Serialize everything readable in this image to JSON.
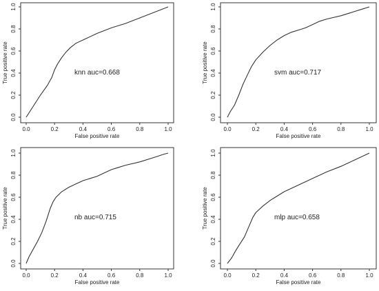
{
  "chart_data": [
    {
      "type": "line",
      "xlabel": "False positive rate",
      "ylabel": "True positive rate",
      "annotation": "knn auc=0.668",
      "xlim": [
        0,
        1
      ],
      "ylim": [
        0,
        1
      ],
      "xticks": [
        "0.0",
        "0.2",
        "0.4",
        "0.6",
        "0.8",
        "1.0"
      ],
      "yticks": [
        "0.0",
        "0.2",
        "0.4",
        "0.6",
        "0.8",
        "1.0"
      ],
      "grid": false,
      "x": [
        0,
        0.05,
        0.1,
        0.15,
        0.18,
        0.2,
        0.22,
        0.25,
        0.28,
        0.31,
        0.35,
        0.4,
        0.5,
        0.6,
        0.7,
        0.8,
        0.9,
        1.0
      ],
      "y": [
        0,
        0.1,
        0.2,
        0.29,
        0.36,
        0.43,
        0.48,
        0.54,
        0.59,
        0.63,
        0.67,
        0.7,
        0.76,
        0.81,
        0.85,
        0.9,
        0.95,
        1.0
      ]
    },
    {
      "type": "line",
      "xlabel": "False positive rate",
      "ylabel": "True positive rate",
      "annotation": "svm auc=0.717",
      "xlim": [
        0,
        1
      ],
      "ylim": [
        0,
        1
      ],
      "xticks": [
        "0.0",
        "0.2",
        "0.4",
        "0.6",
        "0.8",
        "1.0"
      ],
      "yticks": [
        "0.0",
        "0.2",
        "0.4",
        "0.6",
        "0.8",
        "1.0"
      ],
      "grid": false,
      "x": [
        0,
        0.02,
        0.05,
        0.08,
        0.11,
        0.14,
        0.17,
        0.2,
        0.25,
        0.3,
        0.35,
        0.4,
        0.45,
        0.5,
        0.55,
        0.6,
        0.65,
        0.7,
        0.8,
        0.9,
        0.95,
        1.0
      ],
      "y": [
        0,
        0.05,
        0.11,
        0.2,
        0.3,
        0.38,
        0.46,
        0.52,
        0.59,
        0.65,
        0.7,
        0.74,
        0.77,
        0.79,
        0.81,
        0.84,
        0.87,
        0.89,
        0.92,
        0.96,
        0.98,
        1.0
      ]
    },
    {
      "type": "line",
      "xlabel": "False positive rate",
      "ylabel": "True positive rate",
      "annotation": "nb auc=0.715",
      "xlim": [
        0,
        1
      ],
      "ylim": [
        0,
        1
      ],
      "xticks": [
        "0.0",
        "0.2",
        "0.4",
        "0.6",
        "0.8",
        "1.0"
      ],
      "yticks": [
        "0.0",
        "0.2",
        "0.4",
        "0.6",
        "0.8",
        "1.0"
      ],
      "grid": false,
      "x": [
        0,
        0.02,
        0.05,
        0.08,
        0.11,
        0.14,
        0.17,
        0.19,
        0.21,
        0.25,
        0.3,
        0.35,
        0.4,
        0.45,
        0.5,
        0.55,
        0.6,
        0.65,
        0.7,
        0.8,
        0.9,
        0.97,
        1.0
      ],
      "y": [
        0,
        0.06,
        0.13,
        0.2,
        0.28,
        0.38,
        0.5,
        0.56,
        0.6,
        0.65,
        0.69,
        0.72,
        0.75,
        0.77,
        0.79,
        0.82,
        0.85,
        0.87,
        0.89,
        0.92,
        0.96,
        0.99,
        1.0
      ]
    },
    {
      "type": "line",
      "xlabel": "False positive rate",
      "ylabel": "True positive rate",
      "annotation": "mlp auc=0.658",
      "xlim": [
        0,
        1
      ],
      "ylim": [
        0,
        1
      ],
      "xticks": [
        "0.0",
        "0.2",
        "0.4",
        "0.6",
        "0.8",
        "1.0"
      ],
      "yticks": [
        "0.0",
        "0.2",
        "0.4",
        "0.6",
        "0.8",
        "1.0"
      ],
      "grid": false,
      "x": [
        0,
        0.03,
        0.06,
        0.09,
        0.12,
        0.15,
        0.18,
        0.2,
        0.25,
        0.3,
        0.35,
        0.4,
        0.5,
        0.6,
        0.7,
        0.8,
        0.9,
        1.0
      ],
      "y": [
        0,
        0.05,
        0.12,
        0.18,
        0.24,
        0.33,
        0.42,
        0.46,
        0.52,
        0.57,
        0.61,
        0.65,
        0.71,
        0.77,
        0.83,
        0.88,
        0.94,
        1.0
      ]
    }
  ]
}
